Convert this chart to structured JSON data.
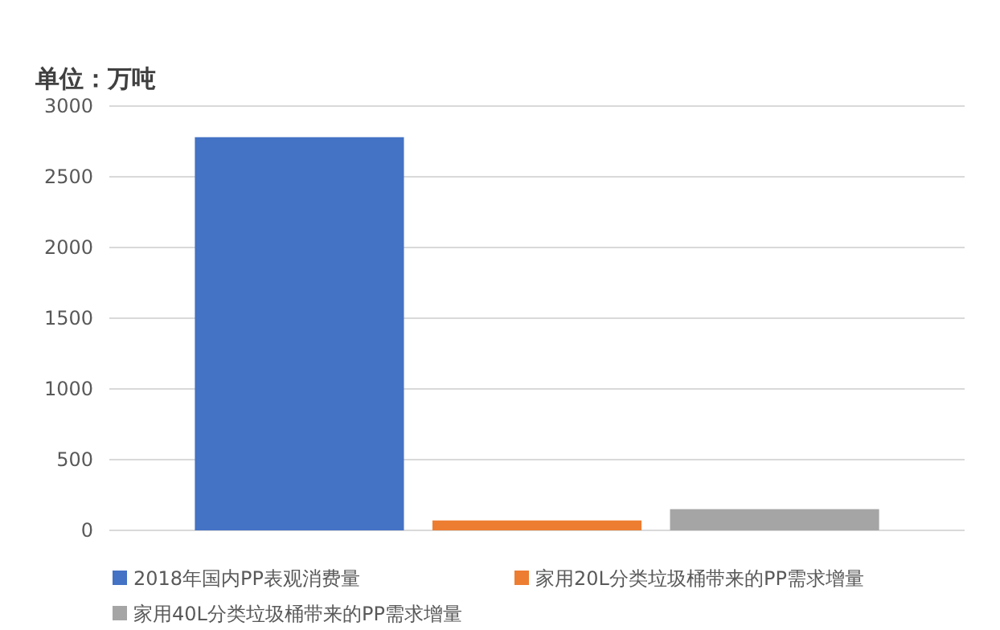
{
  "chart_data": {
    "type": "bar",
    "title": "单位：万吨",
    "categories": [
      null
    ],
    "series": [
      {
        "name": "2018年国内PP表观消费量",
        "color": "#4472c4",
        "values": [
          2780
        ]
      },
      {
        "name": "家用20L分类垃圾桶带来的PP需求增量",
        "color": "#ed7d31",
        "values": [
          70
        ]
      },
      {
        "name": "家用40L分类垃圾桶带来的PP需求增量",
        "color": "#a5a5a5",
        "values": [
          150
        ]
      }
    ],
    "ylim": [
      0,
      3000
    ],
    "yticks": [
      0,
      500,
      1000,
      1500,
      2000,
      2500,
      3000
    ],
    "grid": "y",
    "legend": "bottom"
  }
}
